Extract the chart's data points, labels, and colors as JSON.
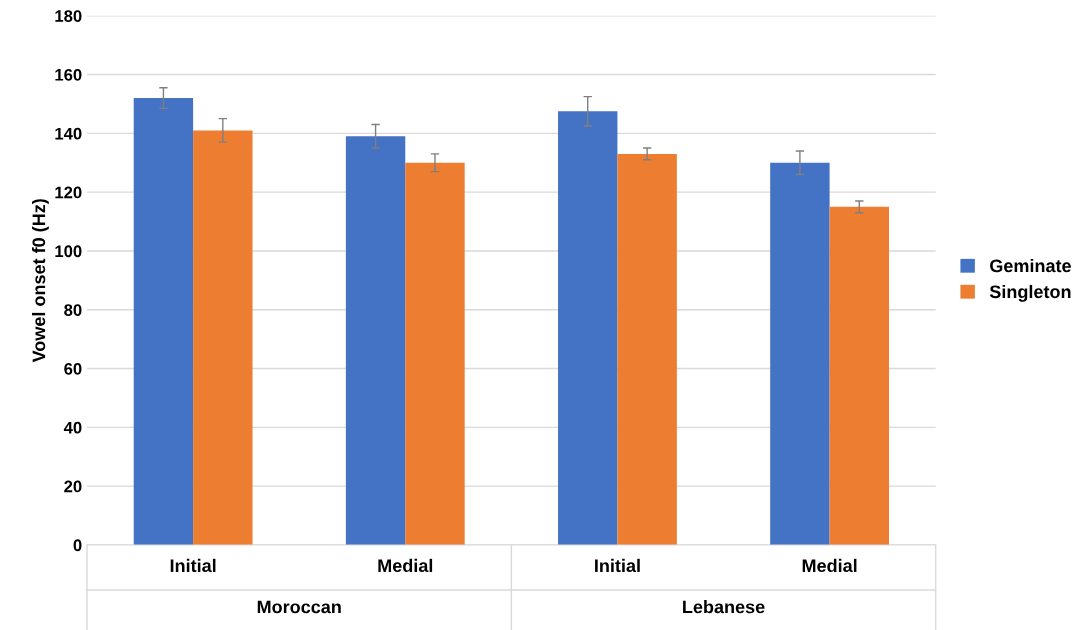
{
  "chart_data": {
    "type": "bar",
    "ylabel": "Vowel onset f0 (Hz)",
    "categories": [
      "Initial",
      "Medial",
      "Initial",
      "Medial"
    ],
    "annotations": [
      "Moroccan",
      "Lebanese"
    ],
    "series": [
      {
        "name": "Geminate",
        "color": "#4472c4",
        "values": [
          152,
          139,
          147.5,
          130
        ],
        "errors": [
          3.5,
          4,
          5,
          4
        ]
      },
      {
        "name": "Singleton",
        "color": "#ed7d31",
        "values": [
          141,
          130,
          133,
          115
        ],
        "errors": [
          4,
          3,
          2,
          2
        ]
      }
    ],
    "ylim": [
      0,
      180
    ],
    "yticks": [
      0,
      20,
      40,
      60,
      80,
      100,
      120,
      140,
      160,
      180
    ],
    "grid": "y",
    "legend": "right"
  }
}
